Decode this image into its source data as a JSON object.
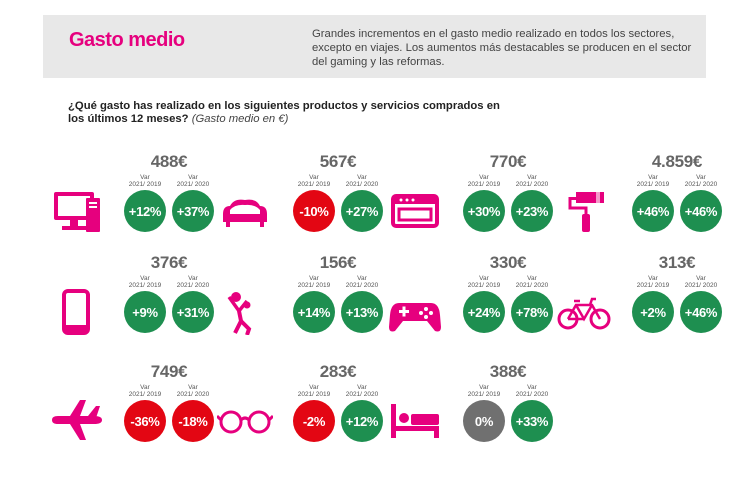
{
  "header": {
    "title": "Gasto medio",
    "description": "Grandes incrementos en el gasto medio realizado en todos los sectores, excepto en viajes. Los aumentos más destacables se producen en el sector del gaming y las reformas."
  },
  "question": {
    "text": "¿Qué gasto has realizado en los siguientes productos y servicios comprados en los últimos 12 meses?",
    "note": "(Gasto medio en €)"
  },
  "labels": {
    "var1": "Var 2021/ 2019",
    "var2": "Var 2021/ 2020"
  },
  "colors": {
    "accent": "#e6007e",
    "positive": "#1e8f50",
    "negative": "#e30613",
    "neutral": "#707070"
  },
  "items": [
    {
      "icon": "computer-icon",
      "amount": "488€",
      "var1": "+12%",
      "var2": "+37%",
      "status1": "positive",
      "status2": "positive"
    },
    {
      "icon": "sofa-icon",
      "amount": "567€",
      "var1": "-10%",
      "var2": "+27%",
      "status1": "negative",
      "status2": "positive"
    },
    {
      "icon": "oven-icon",
      "amount": "770€",
      "var1": "+30%",
      "var2": "+23%",
      "status1": "positive",
      "status2": "positive"
    },
    {
      "icon": "paint-roller-icon",
      "amount": "4.859€",
      "var1": "+46%",
      "var2": "+46%",
      "status1": "positive",
      "status2": "positive"
    },
    {
      "icon": "smartphone-icon",
      "amount": "376€",
      "var1": "+9%",
      "var2": "+31%",
      "status1": "positive",
      "status2": "positive"
    },
    {
      "icon": "volleyball-player-icon",
      "amount": "156€",
      "var1": "+14%",
      "var2": "+13%",
      "status1": "positive",
      "status2": "positive"
    },
    {
      "icon": "gamepad-icon",
      "amount": "330€",
      "var1": "+24%",
      "var2": "+78%",
      "status1": "positive",
      "status2": "positive"
    },
    {
      "icon": "bicycle-icon",
      "amount": "313€",
      "var1": "+2%",
      "var2": "+46%",
      "status1": "positive",
      "status2": "positive"
    },
    {
      "icon": "airplane-icon",
      "amount": "749€",
      "var1": "-36%",
      "var2": "-18%",
      "status1": "negative",
      "status2": "negative"
    },
    {
      "icon": "glasses-icon",
      "amount": "283€",
      "var1": "-2%",
      "var2": "+12%",
      "status1": "negative",
      "status2": "positive"
    },
    {
      "icon": "bed-icon",
      "amount": "388€",
      "var1": "0%",
      "var2": "+33%",
      "status1": "neutral",
      "status2": "positive"
    }
  ]
}
